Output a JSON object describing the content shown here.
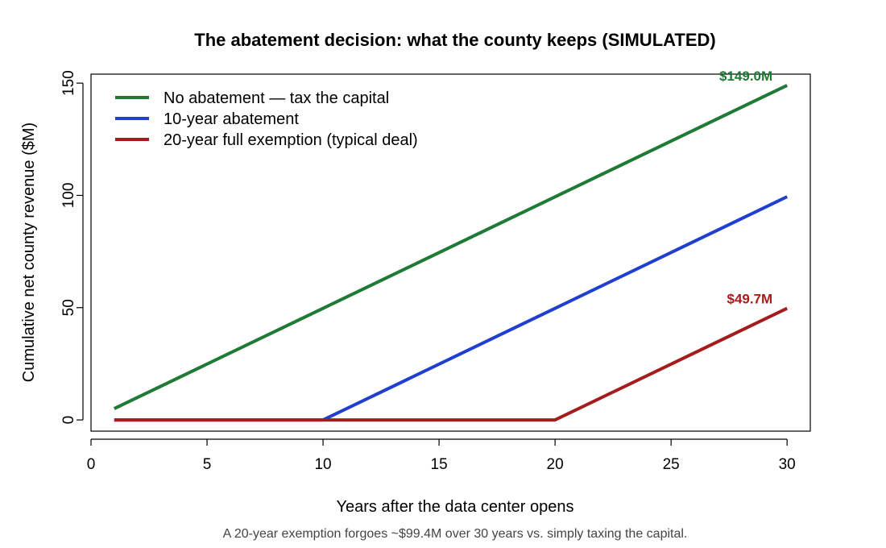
{
  "chart_data": {
    "type": "line",
    "title": "The abatement decision: what the county keeps (SIMULATED)",
    "xlabel": "Years after the data center opens",
    "ylabel": "Cumulative net county revenue ($M)",
    "caption": "A 20-year exemption forgoes ~$99.4M over 30 years vs. simply taxing the capital.",
    "xlim": [
      0,
      31
    ],
    "ylim": [
      -5,
      154
    ],
    "x_ticks": [
      0,
      5,
      10,
      15,
      20,
      25,
      30
    ],
    "y_ticks": [
      0,
      50,
      100,
      150
    ],
    "grid": false,
    "legend_position": "top-left",
    "series": [
      {
        "name": "No abatement — tax the capital",
        "color": "#1e7a34",
        "x": [
          1,
          30
        ],
        "y": [
          5.0,
          149.0
        ],
        "end_label": "$149.0M"
      },
      {
        "name": "10-year abatement",
        "color": "#1f3fd0",
        "x": [
          1,
          10,
          30
        ],
        "y": [
          0,
          0,
          99.4
        ]
      },
      {
        "name": "20-year full exemption (typical deal)",
        "color": "#a51c1c",
        "x": [
          1,
          20,
          30
        ],
        "y": [
          0,
          0,
          49.7
        ],
        "end_label": "$49.7M"
      }
    ]
  }
}
